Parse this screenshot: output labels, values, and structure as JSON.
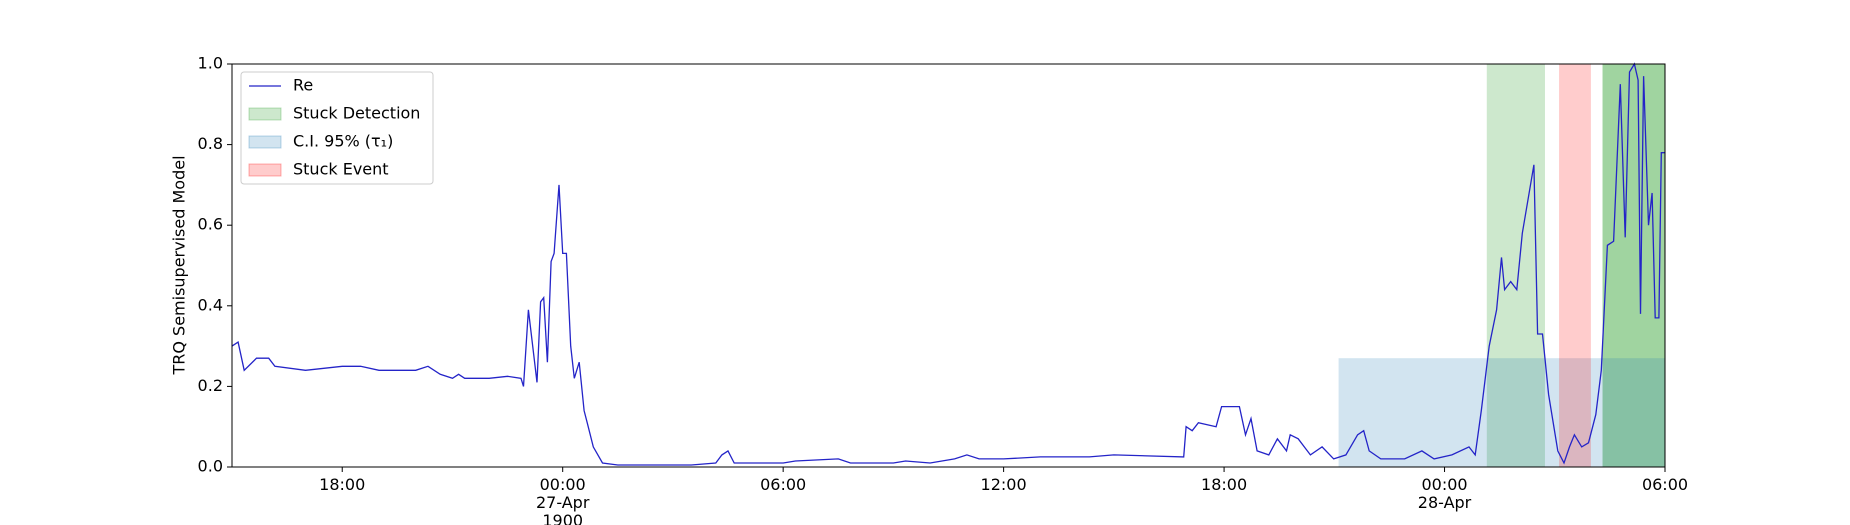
{
  "chart_data": {
    "type": "line",
    "ylabel": "TRQ Semisupervised Model",
    "xlim": [
      "26-Apr 15:00",
      "28-Apr 06:00"
    ],
    "xticks": [
      {
        "value": "26-Apr 18:00",
        "label": "18:00"
      },
      {
        "value": "27-Apr 00:00",
        "label": "00:00\n27-Apr\n1900"
      },
      {
        "value": "27-Apr 06:00",
        "label": "06:00"
      },
      {
        "value": "27-Apr 12:00",
        "label": "12:00"
      },
      {
        "value": "27-Apr 18:00",
        "label": "18:00"
      },
      {
        "value": "28-Apr 00:00",
        "label": "00:00\n28-Apr"
      },
      {
        "value": "28-Apr 06:00",
        "label": "06:00"
      }
    ],
    "ylim": [
      0,
      1
    ],
    "yticks": [
      {
        "value": 0,
        "label": "0.0"
      },
      {
        "value": 0.2,
        "label": "0.2"
      },
      {
        "value": 0.4,
        "label": "0.4"
      },
      {
        "value": 0.6,
        "label": "0.6"
      },
      {
        "value": 0.8,
        "label": "0.8"
      },
      {
        "value": 1,
        "label": "1.0"
      }
    ],
    "legend": "upper left",
    "series": [
      {
        "name": "Re",
        "color": "#2424c8",
        "x": [
          "26-Apr 15:00",
          "26-Apr 15:10",
          "26-Apr 15:20",
          "26-Apr 15:40",
          "26-Apr 16:00",
          "26-Apr 16:10",
          "26-Apr 17:00",
          "26-Apr 18:00",
          "26-Apr 18:30",
          "26-Apr 19:00",
          "26-Apr 19:30",
          "26-Apr 20:00",
          "26-Apr 20:20",
          "26-Apr 20:40",
          "26-Apr 21:00",
          "26-Apr 21:10",
          "26-Apr 21:20",
          "26-Apr 22:00",
          "26-Apr 22:30",
          "26-Apr 22:52",
          "26-Apr 22:56",
          "26-Apr 23:04",
          "26-Apr 23:18",
          "26-Apr 23:24",
          "26-Apr 23:29",
          "26-Apr 23:35",
          "26-Apr 23:41",
          "26-Apr 23:46",
          "26-Apr 23:54",
          "27-Apr 00:00",
          "27-Apr 00:06",
          "27-Apr 00:13",
          "27-Apr 00:19",
          "27-Apr 00:27",
          "27-Apr 00:35",
          "27-Apr 00:40",
          "27-Apr 00:50",
          "27-Apr 01:05",
          "27-Apr 01:30",
          "27-Apr 02:30",
          "27-Apr 03:30",
          "27-Apr 04:10",
          "27-Apr 04:20",
          "27-Apr 04:30",
          "27-Apr 04:40",
          "27-Apr 05:00",
          "27-Apr 06:00",
          "27-Apr 06:20",
          "27-Apr 07:30",
          "27-Apr 07:50",
          "27-Apr 09:00",
          "27-Apr 09:20",
          "27-Apr 10:00",
          "27-Apr 10:40",
          "27-Apr 11:00",
          "27-Apr 11:20",
          "27-Apr 12:00",
          "27-Apr 13:00",
          "27-Apr 14:20",
          "27-Apr 15:00",
          "27-Apr 16:54",
          "27-Apr 16:58",
          "27-Apr 17:08",
          "27-Apr 17:18",
          "27-Apr 17:47",
          "27-Apr 17:56",
          "27-Apr 18:25",
          "27-Apr 18:35",
          "27-Apr 18:44",
          "27-Apr 18:54",
          "27-Apr 19:13",
          "27-Apr 19:27",
          "27-Apr 19:42",
          "27-Apr 19:48",
          "27-Apr 20:01",
          "27-Apr 20:11",
          "27-Apr 20:21",
          "27-Apr 20:40",
          "27-Apr 20:59",
          "27-Apr 21:19",
          "27-Apr 21:38",
          "27-Apr 21:48",
          "27-Apr 21:57",
          "27-Apr 22:16",
          "27-Apr 22:55",
          "27-Apr 23:23",
          "27-Apr 23:43",
          "28-Apr 00:12",
          "28-Apr 00:40",
          "28-Apr 00:50",
          "28-Apr 01:00",
          "28-Apr 01:13",
          "28-Apr 01:25",
          "28-Apr 01:33",
          "28-Apr 01:38",
          "28-Apr 01:48",
          "28-Apr 01:58",
          "28-Apr 02:07",
          "28-Apr 02:26",
          "28-Apr 02:32",
          "28-Apr 02:40",
          "28-Apr 02:50",
          "28-Apr 03:05",
          "28-Apr 03:15",
          "28-Apr 03:24",
          "28-Apr 03:32",
          "28-Apr 03:44",
          "28-Apr 03:55",
          "28-Apr 04:07",
          "28-Apr 04:16",
          "28-Apr 04:26",
          "28-Apr 04:36",
          "28-Apr 04:47",
          "28-Apr 04:55",
          "28-Apr 05:02",
          "28-Apr 05:10",
          "28-Apr 05:16",
          "28-Apr 05:20",
          "28-Apr 05:25",
          "28-Apr 05:33",
          "28-Apr 05:39",
          "28-Apr 05:44",
          "28-Apr 05:50",
          "28-Apr 05:54",
          "28-Apr 06:00"
        ],
        "values": [
          0.3,
          0.31,
          0.24,
          0.27,
          0.27,
          0.25,
          0.24,
          0.25,
          0.25,
          0.24,
          0.24,
          0.24,
          0.25,
          0.23,
          0.22,
          0.23,
          0.22,
          0.22,
          0.225,
          0.22,
          0.2,
          0.39,
          0.21,
          0.41,
          0.42,
          0.26,
          0.51,
          0.53,
          0.7,
          0.53,
          0.53,
          0.3,
          0.22,
          0.26,
          0.14,
          0.11,
          0.05,
          0.01,
          0.005,
          0.005,
          0.005,
          0.01,
          0.03,
          0.04,
          0.01,
          0.01,
          0.01,
          0.015,
          0.02,
          0.01,
          0.01,
          0.015,
          0.01,
          0.02,
          0.03,
          0.02,
          0.02,
          0.025,
          0.025,
          0.03,
          0.025,
          0.1,
          0.09,
          0.11,
          0.1,
          0.15,
          0.15,
          0.08,
          0.12,
          0.04,
          0.03,
          0.07,
          0.04,
          0.08,
          0.07,
          0.05,
          0.03,
          0.05,
          0.02,
          0.03,
          0.08,
          0.09,
          0.04,
          0.02,
          0.02,
          0.04,
          0.02,
          0.03,
          0.05,
          0.03,
          0.14,
          0.3,
          0.39,
          0.52,
          0.44,
          0.46,
          0.44,
          0.58,
          0.75,
          0.33,
          0.33,
          0.18,
          0.04,
          0.01,
          0.05,
          0.08,
          0.05,
          0.06,
          0.13,
          0.24,
          0.55,
          0.56,
          0.95,
          0.57,
          0.98,
          1.0,
          0.96,
          0.38,
          0.97,
          0.6,
          0.68,
          0.37,
          0.37,
          0.78,
          0.78
        ]
      }
    ],
    "regions": [
      {
        "name": "Stuck Detection",
        "color": "#2ca02c",
        "spans": [
          {
            "x": [
              "28-Apr 01:09",
              "28-Apr 02:44"
            ],
            "alpha": 0.24
          },
          {
            "x": [
              "28-Apr 04:18",
              "28-Apr 06:00"
            ],
            "alpha": 0.45
          }
        ]
      },
      {
        "name": "C.I. 95% (τ₁)",
        "color": "#1f77b4",
        "spans": [
          {
            "x": [
              "27-Apr 21:07",
              "28-Apr 06:00"
            ],
            "y": [
              0,
              0.27
            ],
            "alpha": 0.2
          }
        ]
      },
      {
        "name": "Stuck Event",
        "color": "#ff0000",
        "spans": [
          {
            "x": [
              "28-Apr 03:07",
              "28-Apr 03:59"
            ],
            "alpha": 0.2
          }
        ]
      }
    ]
  }
}
